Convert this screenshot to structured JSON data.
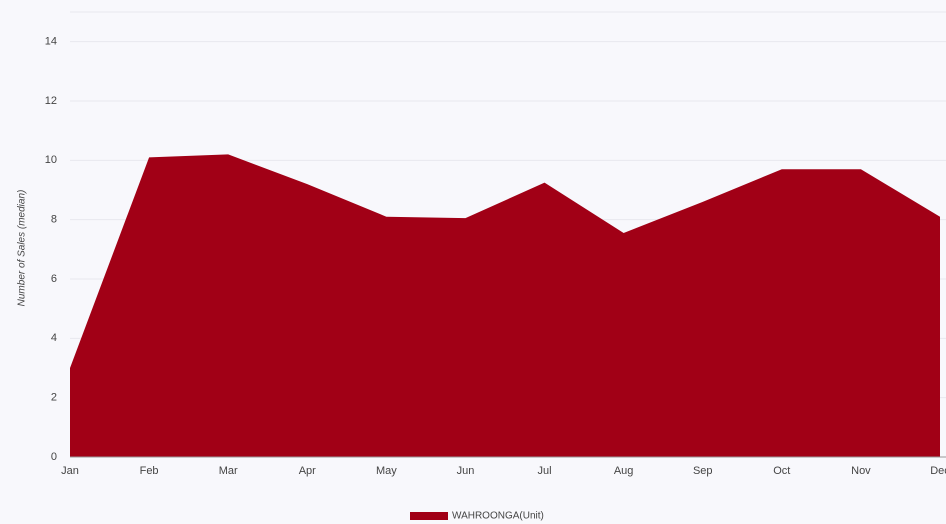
{
  "chart_data": {
    "type": "area",
    "y_label": "Number of Sales (median)",
    "categories": [
      "Jan",
      "Feb",
      "Mar",
      "Apr",
      "May",
      "Jun",
      "Jul",
      "Aug",
      "Sep",
      "Oct",
      "Nov",
      "Dec"
    ],
    "series": [
      {
        "name": "WAHROONGA(Unit)",
        "color": "#a10016",
        "values": [
          3,
          10.1,
          10.2,
          9.2,
          8.1,
          8.05,
          9.25,
          7.55,
          8.6,
          9.7,
          9.7,
          8.1
        ]
      }
    ],
    "ylim": [
      0,
      15
    ],
    "yticks": [
      0,
      2,
      4,
      6,
      8,
      10,
      12,
      14
    ],
    "grid": true
  }
}
